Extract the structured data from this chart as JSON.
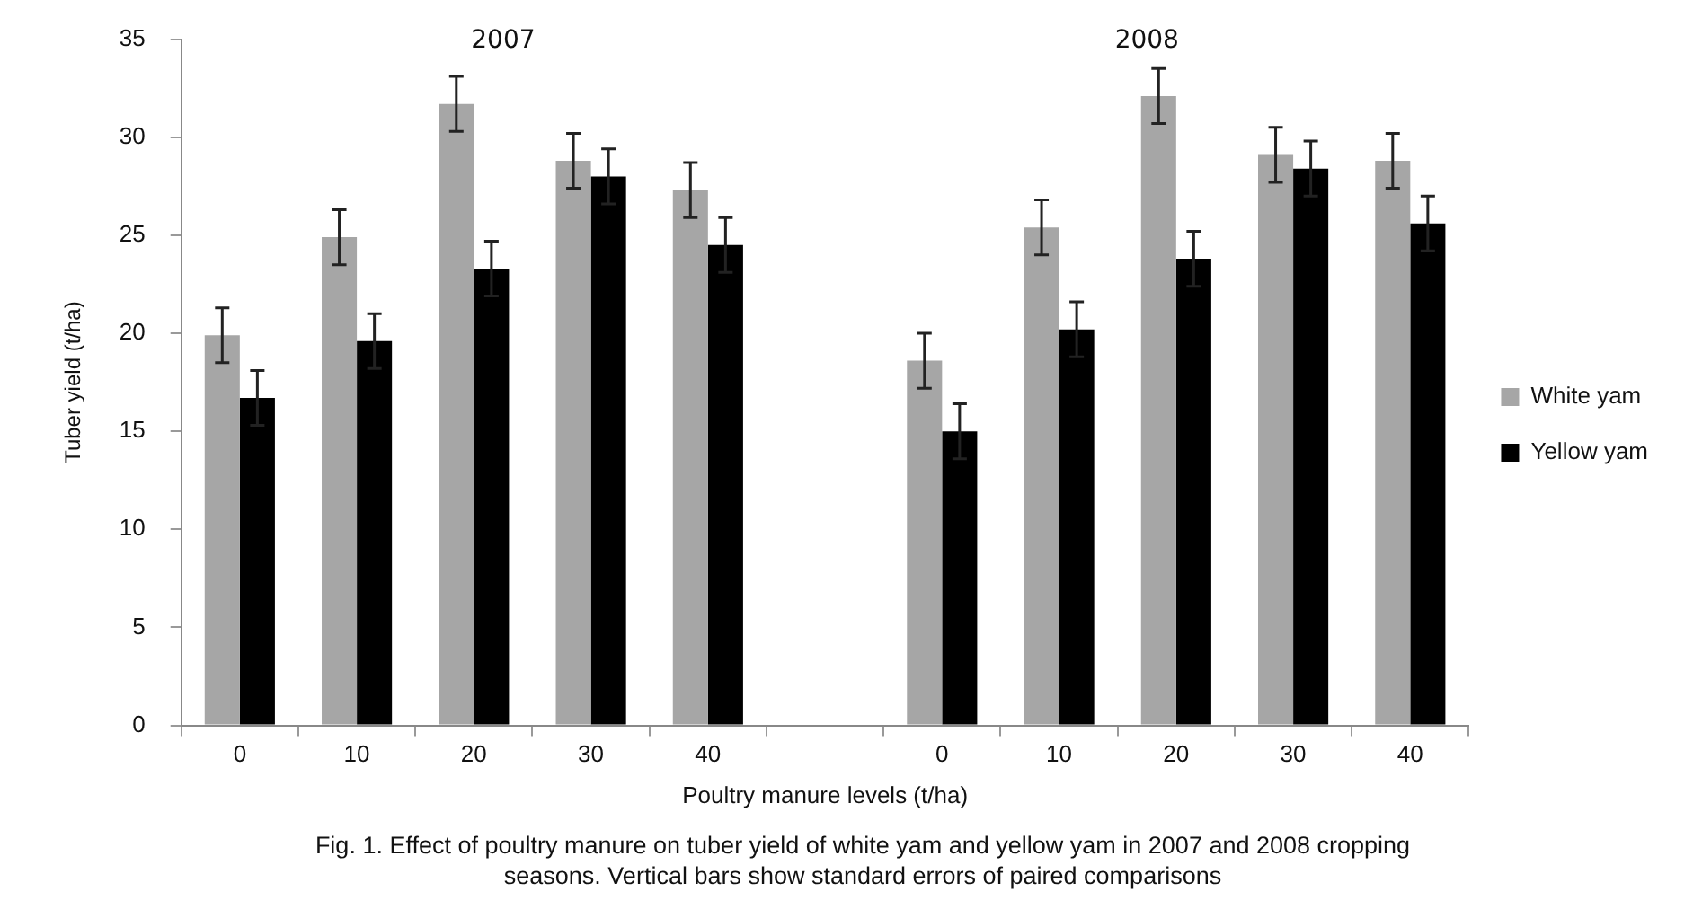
{
  "chart_data": {
    "type": "bar",
    "xlabel": "Poultry manure levels (t/ha)",
    "ylabel": "Tuber yield (t/ha)",
    "categories": [
      "0",
      "10",
      "20",
      "30",
      "40",
      null,
      "0",
      "10",
      "20",
      "30",
      "40"
    ],
    "series": [
      {
        "name": "White yam",
        "color": "#a6a6a6",
        "values": [
          19.9,
          24.9,
          31.7,
          28.8,
          27.3,
          null,
          18.6,
          25.4,
          32.1,
          29.1,
          28.8
        ],
        "errors": [
          1.4,
          1.4,
          1.4,
          1.4,
          1.4,
          null,
          1.4,
          1.4,
          1.4,
          1.4,
          1.4
        ]
      },
      {
        "name": "Yellow yam",
        "color": "#000000",
        "values": [
          16.7,
          19.6,
          23.3,
          28.0,
          24.5,
          null,
          15.0,
          20.2,
          23.8,
          28.4,
          25.6
        ],
        "errors": [
          1.4,
          1.4,
          1.4,
          1.4,
          1.4,
          null,
          1.4,
          1.4,
          1.4,
          1.4,
          1.4
        ]
      }
    ],
    "ylim": [
      0,
      35
    ],
    "yticks": [
      0,
      5,
      10,
      15,
      20,
      25,
      30,
      35
    ],
    "grid": false,
    "legend": "right",
    "annotations": [
      "2007",
      "2008",
      "Fig. 1. Effect of poultry manure on tuber yield of white yam and yellow yam in 2007 and 2008 cropping seasons. Vertical bars show standard errors of paired comparisons"
    ]
  }
}
